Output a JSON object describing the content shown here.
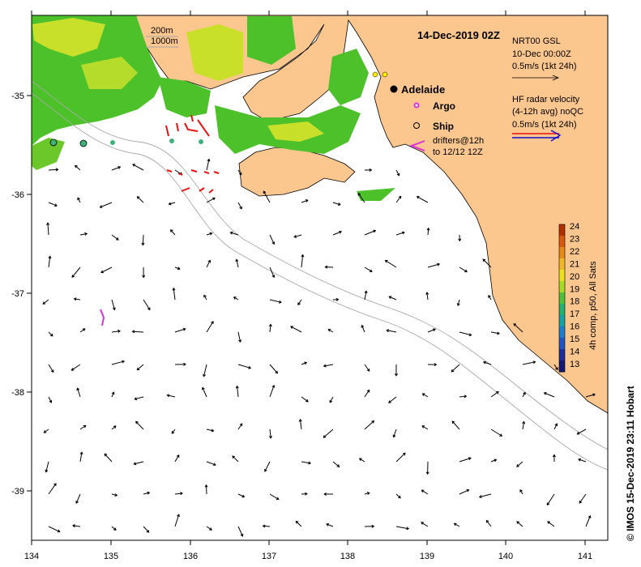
{
  "title": "14-Dec-2019 02Z",
  "depth_legend": [
    "200m",
    "1000m"
  ],
  "gsl_legend": {
    "line1": "NRT00 GSL",
    "line2": "10-Dec 00:00Z",
    "line3": "0.5m/s (1kt 24h)"
  },
  "hf_legend": {
    "line1": "HF radar velocity",
    "line2": "(4-12h avg) noQC",
    "line3": "0.5m/s (1kt 24h)"
  },
  "places": {
    "adelaide": "Adelaide",
    "argo": "Argo",
    "ship": "Ship",
    "drifters1": "drifters@12h",
    "drifters2": "to 12/12 12Z"
  },
  "colorbar": {
    "label": "4h comp, p50, All Sats",
    "ticks": [
      "24",
      "23",
      "22",
      "21",
      "20",
      "19",
      "18",
      "17",
      "16",
      "15",
      "14",
      "13"
    ]
  },
  "credit": "© IMOS 15-Dec-2019 23:11 Hobart",
  "x_ticks": [
    "134",
    "135",
    "136",
    "137",
    "138",
    "139",
    "140",
    "141"
  ],
  "y_ticks": [
    "-35",
    "-36",
    "-37",
    "-38",
    "-39"
  ],
  "colors": {
    "land": "#fcc68f",
    "sst_green": "#4cc12a",
    "sst_yellow": "#c9e02a",
    "drifter": "#e81212",
    "argo": "#e030e0",
    "hf": "#1010d0"
  }
}
